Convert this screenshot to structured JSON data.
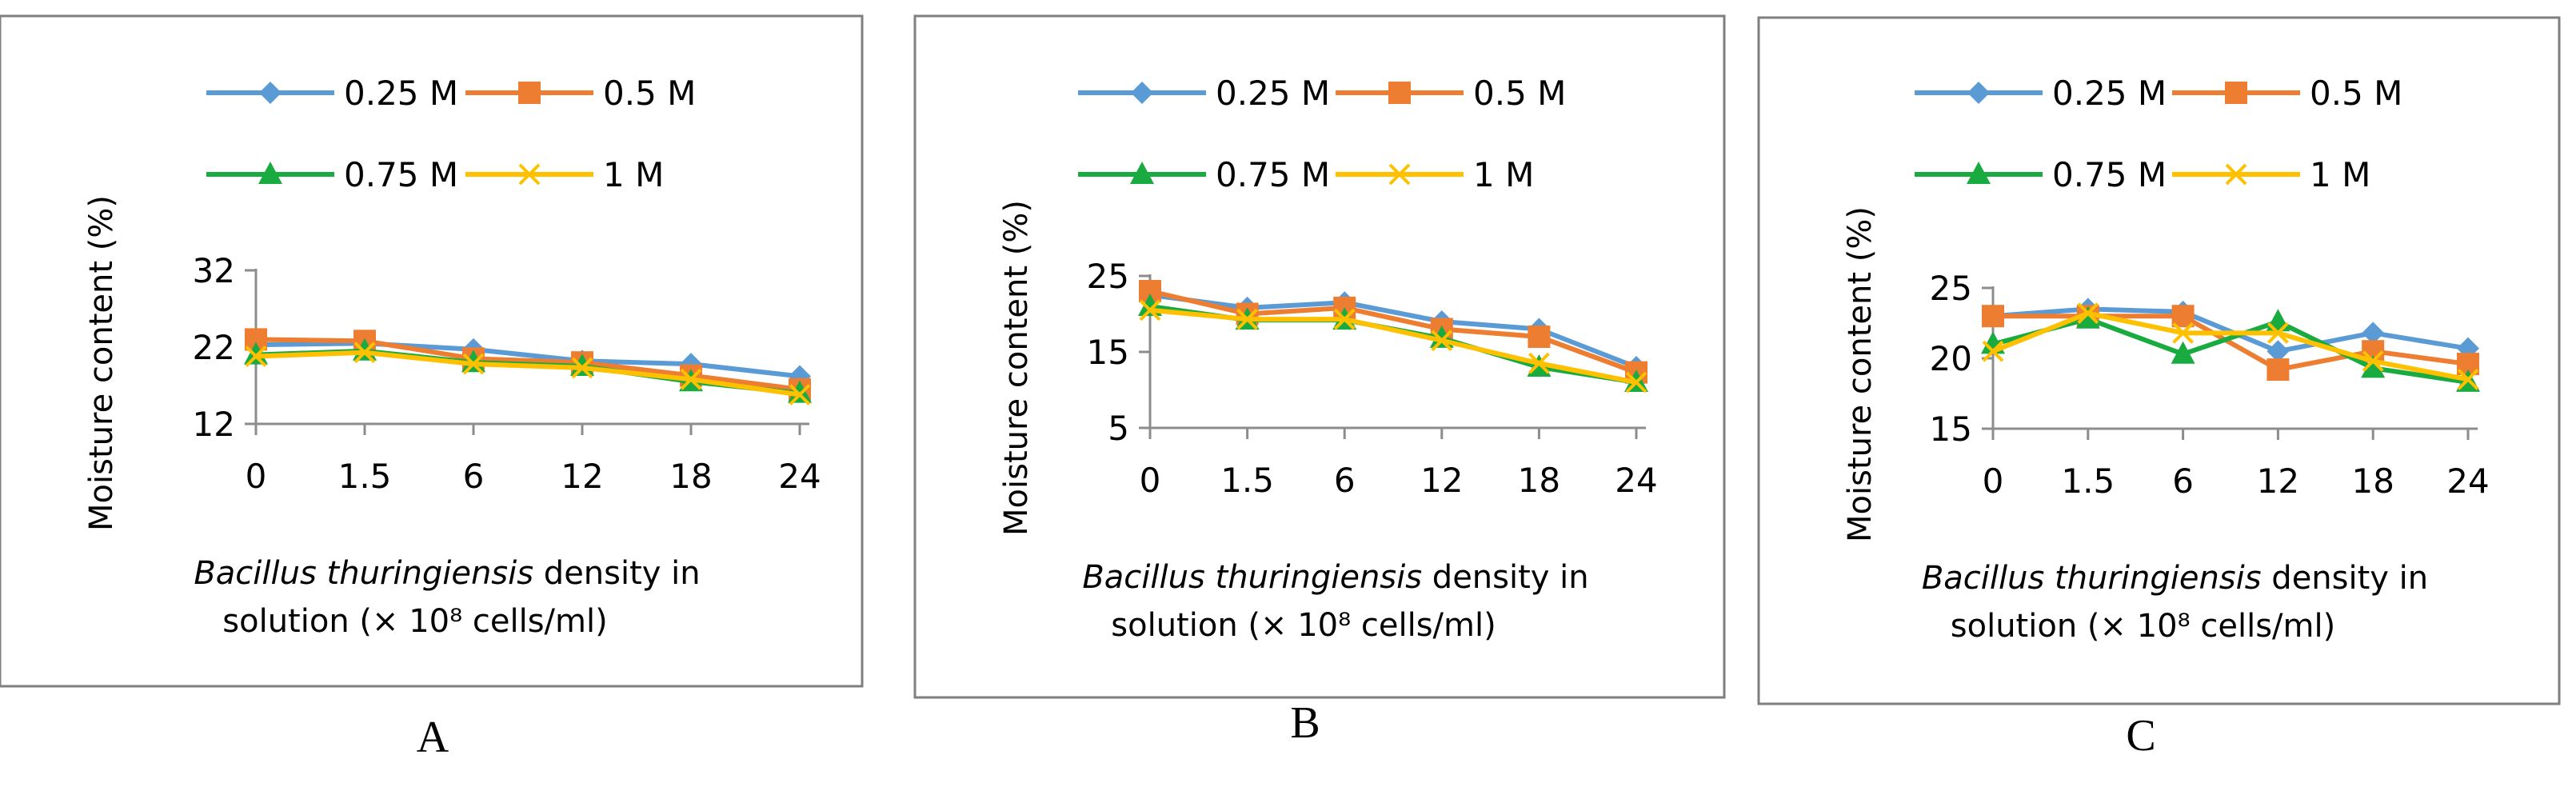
{
  "colors": {
    "s025": "#5b9bd5",
    "s05": "#ed7d31",
    "s075": "#1aab40",
    "s1": "#ffc000",
    "axis": "#8c8c8c",
    "frame": "#7f7f7f"
  },
  "chart_data": [
    {
      "type": "line",
      "panel_label": "A",
      "categories": [
        "0",
        "1.5",
        "6",
        "12",
        "18",
        "24"
      ],
      "ylabel": "Moisture content (%)",
      "xlabel_italic": "Bacillus thuringiensis",
      "xlabel_rest": " density in",
      "xlabel_line2": "solution  (× 10⁸ cells/ml)",
      "ylim": [
        12,
        32
      ],
      "yticks": [
        "12",
        "22",
        "32"
      ],
      "legend": "top",
      "series": [
        {
          "name": "0.25 M",
          "marker": "diamond",
          "values": [
            22.3,
            22.5,
            21.7,
            20.2,
            19.8,
            18.2
          ]
        },
        {
          "name": "0.5 M",
          "marker": "square",
          "values": [
            23.0,
            22.8,
            20.5,
            20.0,
            18.3,
            16.5
          ]
        },
        {
          "name": "0.75 M",
          "marker": "triangle",
          "values": [
            21.0,
            21.5,
            20.0,
            19.5,
            17.5,
            16.0
          ]
        },
        {
          "name": "1 M",
          "marker": "x",
          "values": [
            20.8,
            21.3,
            19.8,
            19.3,
            17.8,
            15.8
          ]
        }
      ]
    },
    {
      "type": "line",
      "panel_label": "B",
      "categories": [
        "0",
        "1.5",
        "6",
        "12",
        "18",
        "24"
      ],
      "ylabel": "Moisture content (%)",
      "xlabel_italic": "Bacillus thuringiensis",
      "xlabel_rest": " density in",
      "xlabel_line2": "solution  (× 10⁸ cells/ml)",
      "ylim": [
        5,
        25
      ],
      "yticks": [
        "5",
        "15",
        "25"
      ],
      "legend": "top",
      "series": [
        {
          "name": "0.25 M",
          "marker": "diamond",
          "values": [
            22.5,
            20.8,
            21.5,
            19.0,
            18.0,
            13.0
          ]
        },
        {
          "name": "0.5 M",
          "marker": "square",
          "values": [
            23.0,
            20.0,
            20.8,
            18.0,
            17.0,
            12.3
          ]
        },
        {
          "name": "0.75 M",
          "marker": "triangle",
          "values": [
            21.0,
            19.2,
            19.2,
            16.8,
            13.0,
            11.0
          ]
        },
        {
          "name": "1 M",
          "marker": "x",
          "values": [
            20.5,
            19.3,
            19.3,
            16.5,
            13.5,
            11.0
          ]
        }
      ]
    },
    {
      "type": "line",
      "panel_label": "C",
      "categories": [
        "0",
        "1.5",
        "6",
        "12",
        "18",
        "24"
      ],
      "ylabel": "Moisture content (%)",
      "xlabel_italic": "Bacillus thuringiensis",
      "xlabel_rest": " density in",
      "xlabel_line2": "solution  (× 10⁸ cells/ml)",
      "ylim": [
        15,
        25
      ],
      "yticks": [
        "15",
        "20",
        "25"
      ],
      "legend": "top",
      "series": [
        {
          "name": "0.25 M",
          "marker": "diamond",
          "values": [
            23.0,
            23.5,
            23.3,
            20.5,
            21.8,
            20.7
          ]
        },
        {
          "name": "0.5 M",
          "marker": "square",
          "values": [
            23.0,
            23.0,
            23.0,
            19.2,
            20.5,
            19.6
          ]
        },
        {
          "name": "0.75 M",
          "marker": "triangle",
          "values": [
            21.0,
            22.8,
            20.3,
            22.6,
            19.3,
            18.3
          ]
        },
        {
          "name": "1 M",
          "marker": "x",
          "values": [
            20.5,
            23.2,
            21.8,
            21.8,
            19.8,
            18.5
          ]
        }
      ]
    }
  ]
}
